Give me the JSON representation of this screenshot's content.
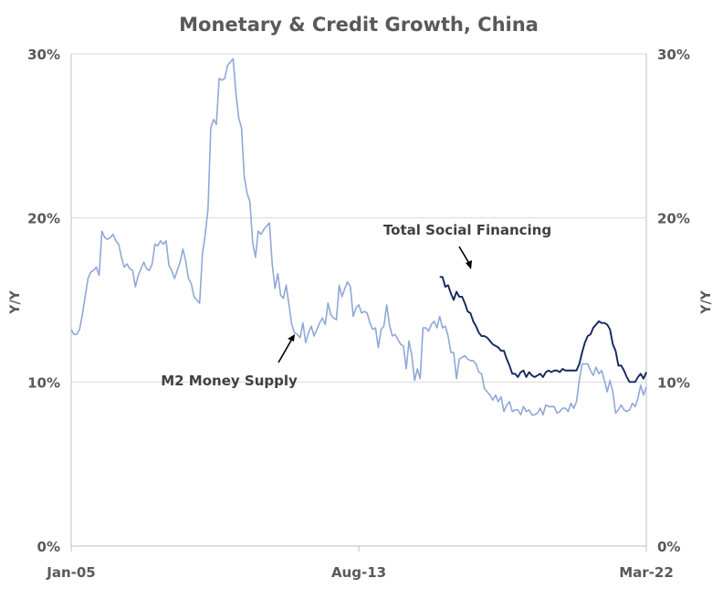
{
  "chart_data": {
    "type": "line",
    "title": "Monetary & Credit Growth, China",
    "ylabel_left": "Y/Y",
    "ylabel_right": "Y/Y",
    "ylim": [
      0,
      30
    ],
    "yticks": [
      "0%",
      "10%",
      "20%",
      "30%"
    ],
    "xlim": [
      "2005-01",
      "2022-03"
    ],
    "xticks": [
      "Jan-05",
      "Aug-13",
      "Mar-22"
    ],
    "grid": true,
    "annotations": [
      "Total Social Financing",
      "M2 Money Supply"
    ],
    "colors": {
      "m2": "#8fa8d6",
      "tsf": "#13265e",
      "grid": "#d9d9d9",
      "axis": "#bfbfbf"
    },
    "series": [
      {
        "name": "M2 Money Supply",
        "x": [
          "2005-01",
          "2005-02",
          "2005-03",
          "2005-04",
          "2005-05",
          "2005-06",
          "2005-07",
          "2005-08",
          "2005-09",
          "2005-10",
          "2005-11",
          "2005-12",
          "2006-01",
          "2006-02",
          "2006-03",
          "2006-04",
          "2006-05",
          "2006-06",
          "2006-07",
          "2006-08",
          "2006-09",
          "2006-10",
          "2006-11",
          "2006-12",
          "2007-01",
          "2007-02",
          "2007-03",
          "2007-04",
          "2007-05",
          "2007-06",
          "2007-07",
          "2007-08",
          "2007-09",
          "2007-10",
          "2007-11",
          "2007-12",
          "2008-01",
          "2008-02",
          "2008-03",
          "2008-04",
          "2008-05",
          "2008-06",
          "2008-07",
          "2008-08",
          "2008-09",
          "2008-10",
          "2008-11",
          "2008-12",
          "2009-01",
          "2009-02",
          "2009-03",
          "2009-04",
          "2009-05",
          "2009-06",
          "2009-07",
          "2009-08",
          "2009-09",
          "2009-10",
          "2009-11",
          "2009-12",
          "2010-01",
          "2010-02",
          "2010-03",
          "2010-04",
          "2010-05",
          "2010-06",
          "2010-07",
          "2010-08",
          "2010-09",
          "2010-10",
          "2010-11",
          "2010-12",
          "2011-01",
          "2011-02",
          "2011-03",
          "2011-04",
          "2011-05",
          "2011-06",
          "2011-07",
          "2011-08",
          "2011-09",
          "2011-10",
          "2011-11",
          "2011-12",
          "2012-01",
          "2012-02",
          "2012-03",
          "2012-04",
          "2012-05",
          "2012-06",
          "2012-07",
          "2012-08",
          "2012-09",
          "2012-10",
          "2012-11",
          "2012-12",
          "2013-01",
          "2013-02",
          "2013-03",
          "2013-04",
          "2013-05",
          "2013-06",
          "2013-07",
          "2013-08",
          "2013-09",
          "2013-10",
          "2013-11",
          "2013-12",
          "2014-01",
          "2014-02",
          "2014-03",
          "2014-04",
          "2014-05",
          "2014-06",
          "2014-07",
          "2014-08",
          "2014-09",
          "2014-10",
          "2014-11",
          "2014-12",
          "2015-01",
          "2015-02",
          "2015-03",
          "2015-04",
          "2015-05",
          "2015-06",
          "2015-07",
          "2015-08",
          "2015-09",
          "2015-10",
          "2015-11",
          "2015-12",
          "2016-01",
          "2016-02",
          "2016-03",
          "2016-04",
          "2016-05",
          "2016-06",
          "2016-07",
          "2016-08",
          "2016-09",
          "2016-10",
          "2016-11",
          "2016-12",
          "2017-01",
          "2017-02",
          "2017-03",
          "2017-04",
          "2017-05",
          "2017-06",
          "2017-07",
          "2017-08",
          "2017-09",
          "2017-10",
          "2017-11",
          "2017-12",
          "2018-01",
          "2018-02",
          "2018-03",
          "2018-04",
          "2018-05",
          "2018-06",
          "2018-07",
          "2018-08",
          "2018-09",
          "2018-10",
          "2018-11",
          "2018-12",
          "2019-01",
          "2019-02",
          "2019-03",
          "2019-04",
          "2019-05",
          "2019-06",
          "2019-07",
          "2019-08",
          "2019-09",
          "2019-10",
          "2019-11",
          "2019-12",
          "2020-01",
          "2020-02",
          "2020-03",
          "2020-04",
          "2020-05",
          "2020-06",
          "2020-07",
          "2020-08",
          "2020-09",
          "2020-10",
          "2020-11",
          "2020-12",
          "2021-01",
          "2021-02",
          "2021-03",
          "2021-04",
          "2021-05",
          "2021-06",
          "2021-07",
          "2021-08",
          "2021-09",
          "2021-10",
          "2021-11",
          "2021-12",
          "2022-01",
          "2022-02",
          "2022-03"
        ],
        "values": [
          13.2,
          12.9,
          12.9,
          13.2,
          14.1,
          15.2,
          16.3,
          16.7,
          16.8,
          17.0,
          16.5,
          19.2,
          18.8,
          18.7,
          18.8,
          19.0,
          18.6,
          18.4,
          17.6,
          17.0,
          17.2,
          16.9,
          16.8,
          15.8,
          16.5,
          16.9,
          17.3,
          16.9,
          16.8,
          17.2,
          18.4,
          18.3,
          18.6,
          18.4,
          18.6,
          17.1,
          16.8,
          16.3,
          16.8,
          17.3,
          18.1,
          17.4,
          16.3,
          16.0,
          15.2,
          15.0,
          14.8,
          17.8,
          19.0,
          20.5,
          25.5,
          26.0,
          25.7,
          28.5,
          28.4,
          28.5,
          29.3,
          29.5,
          29.7,
          27.6,
          26.1,
          25.5,
          22.5,
          21.5,
          21.0,
          18.5,
          17.6,
          19.2,
          19.0,
          19.3,
          19.5,
          19.7,
          17.2,
          15.7,
          16.6,
          15.3,
          15.1,
          15.9,
          14.7,
          13.5,
          13.0,
          12.9,
          12.7,
          13.6,
          12.4,
          13.0,
          13.4,
          12.8,
          13.2,
          13.6,
          13.9,
          13.5,
          14.8,
          14.1,
          13.9,
          13.8,
          15.9,
          15.2,
          15.7,
          16.1,
          15.8,
          14.0,
          14.5,
          14.7,
          14.2,
          14.3,
          14.2,
          13.6,
          13.2,
          13.3,
          12.1,
          13.2,
          13.4,
          14.7,
          13.5,
          12.8,
          12.9,
          12.6,
          12.3,
          12.2,
          10.8,
          12.5,
          11.6,
          10.1,
          10.8,
          10.2,
          13.3,
          13.3,
          13.1,
          13.5,
          13.7,
          13.3,
          14.0,
          13.3,
          13.4,
          12.8,
          11.8,
          11.8,
          10.2,
          11.4,
          11.5,
          11.6,
          11.4,
          11.3,
          11.3,
          11.1,
          10.6,
          10.5,
          9.6,
          9.4,
          9.2,
          8.9,
          9.2,
          8.8,
          9.1,
          8.2,
          8.6,
          8.8,
          8.2,
          8.3,
          8.3,
          8.0,
          8.5,
          8.2,
          8.3,
          8.0,
          8.0,
          8.1,
          8.4,
          8.0,
          8.6,
          8.5,
          8.5,
          8.5,
          8.1,
          8.2,
          8.4,
          8.4,
          8.2,
          8.7,
          8.4,
          8.8,
          10.1,
          11.1,
          11.1,
          11.1,
          10.7,
          10.4,
          10.9,
          10.5,
          10.7,
          10.1,
          9.4,
          10.1,
          9.4,
          8.1,
          8.3,
          8.6,
          8.3,
          8.2,
          8.3,
          8.7,
          8.5,
          9.0,
          9.8,
          9.2,
          9.7
        ]
      },
      {
        "name": "Total Social Financing",
        "x": [
          "2016-01",
          "2016-02",
          "2016-03",
          "2016-04",
          "2016-05",
          "2016-06",
          "2016-07",
          "2016-08",
          "2016-09",
          "2016-10",
          "2016-11",
          "2016-12",
          "2017-01",
          "2017-02",
          "2017-03",
          "2017-04",
          "2017-05",
          "2017-06",
          "2017-07",
          "2017-08",
          "2017-09",
          "2017-10",
          "2017-11",
          "2017-12",
          "2018-01",
          "2018-02",
          "2018-03",
          "2018-04",
          "2018-05",
          "2018-06",
          "2018-07",
          "2018-08",
          "2018-09",
          "2018-10",
          "2018-11",
          "2018-12",
          "2019-01",
          "2019-02",
          "2019-03",
          "2019-04",
          "2019-05",
          "2019-06",
          "2019-07",
          "2019-08",
          "2019-09",
          "2019-10",
          "2019-11",
          "2019-12",
          "2020-01",
          "2020-02",
          "2020-03",
          "2020-04",
          "2020-05",
          "2020-06",
          "2020-07",
          "2020-08",
          "2020-09",
          "2020-10",
          "2020-11",
          "2020-12",
          "2021-01",
          "2021-02",
          "2021-03",
          "2021-04",
          "2021-05",
          "2021-06",
          "2021-07",
          "2021-08",
          "2021-09",
          "2021-10",
          "2021-11",
          "2021-12",
          "2022-01",
          "2022-02",
          "2022-03"
        ],
        "values": [
          16.4,
          16.4,
          15.8,
          15.9,
          15.4,
          15.0,
          15.5,
          15.2,
          15.2,
          14.8,
          14.3,
          14.2,
          13.7,
          13.4,
          13.0,
          12.8,
          12.8,
          12.7,
          12.5,
          12.3,
          12.2,
          12.1,
          11.9,
          11.9,
          11.4,
          11.0,
          10.5,
          10.5,
          10.3,
          10.6,
          10.7,
          10.3,
          10.6,
          10.4,
          10.3,
          10.4,
          10.5,
          10.3,
          10.6,
          10.7,
          10.6,
          10.7,
          10.7,
          10.6,
          10.8,
          10.7,
          10.7,
          10.7,
          10.7,
          10.7,
          11.1,
          11.8,
          12.4,
          12.8,
          12.9,
          13.3,
          13.5,
          13.7,
          13.6,
          13.6,
          13.5,
          13.2,
          12.3,
          11.9,
          11.0,
          11.0,
          10.7,
          10.3,
          10.0,
          10.0,
          10.0,
          10.3,
          10.5,
          10.2,
          10.6
        ]
      }
    ]
  }
}
